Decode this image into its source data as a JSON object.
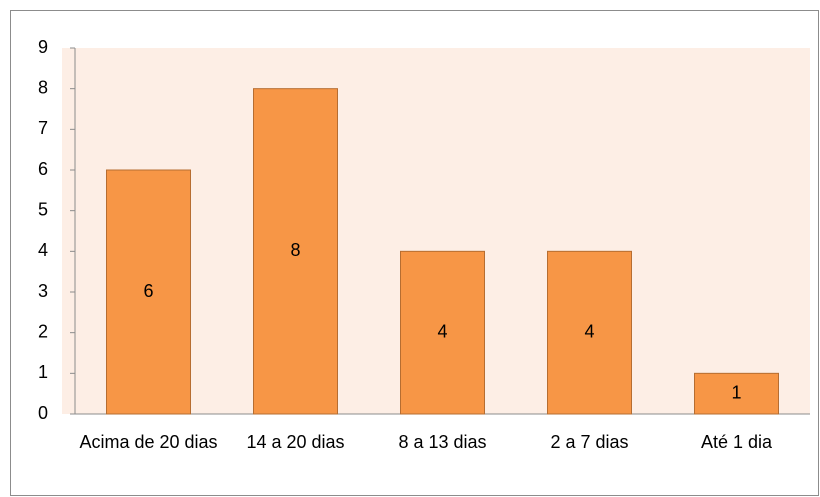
{
  "chart_data": {
    "type": "bar",
    "categories": [
      "Acima de 20 dias",
      "14 a 20 dias",
      "8 a 13 dias",
      "2 a 7 dias",
      "Até 1 dia"
    ],
    "values": [
      6,
      8,
      4,
      4,
      1
    ],
    "color": "#f79646",
    "ylim": [
      0,
      9
    ],
    "yticks": [
      0,
      1,
      2,
      3,
      4,
      5,
      6,
      7,
      8,
      9
    ],
    "grid": false
  }
}
